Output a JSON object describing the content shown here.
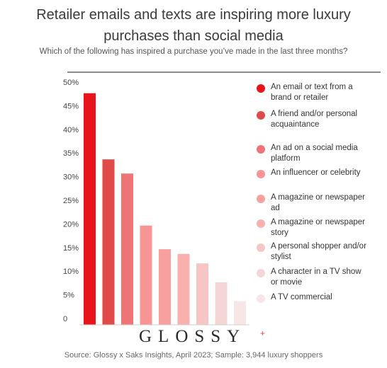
{
  "header": {
    "title_line1": "Retailer emails and texts are inspiring more luxury",
    "title_line2": "purchases than social media",
    "subtitle": "Which of the following has inspired a purchase you’ve made in the last three months?"
  },
  "brand": {
    "name": "GLOSSY",
    "mark": "+"
  },
  "source": "Source: Glossy x Saks Insights, April 2023; Sample: 3,944 luxury shoppers",
  "chart_data": {
    "type": "bar",
    "title": "Retailer emails and texts are inspiring more luxury purchases than social media",
    "subtitle": "Which of the following has inspired a purchase you’ve made in the last three months?",
    "categories": [
      "An email or text from a brand or retailer",
      "A friend and/or personal acquaintance",
      "An ad on a social media platform",
      "An influencer or celebrity",
      "A magazine or newspaper ad",
      "A magazine or newspaper story",
      "A personal shopper and/or stylist",
      "A character in a TV show or movie",
      "A TV commercial"
    ],
    "values": [
      49,
      35,
      32,
      21,
      16,
      15,
      13,
      9,
      5
    ],
    "colors": [
      "#e8141c",
      "#e04a48",
      "#ef7476",
      "#f69593",
      "#f7a09f",
      "#f9b0ae",
      "#f8c5c5",
      "#f5d6d6",
      "#f7e6e6"
    ],
    "yticks": [
      "0",
      "5%",
      "10%",
      "15%",
      "20%",
      "25%",
      "30%",
      "35%",
      "40%",
      "45%",
      "50%"
    ],
    "ylim": [
      0,
      50
    ],
    "grid": false,
    "legend": "right",
    "xlabel": "",
    "ylabel": ""
  }
}
